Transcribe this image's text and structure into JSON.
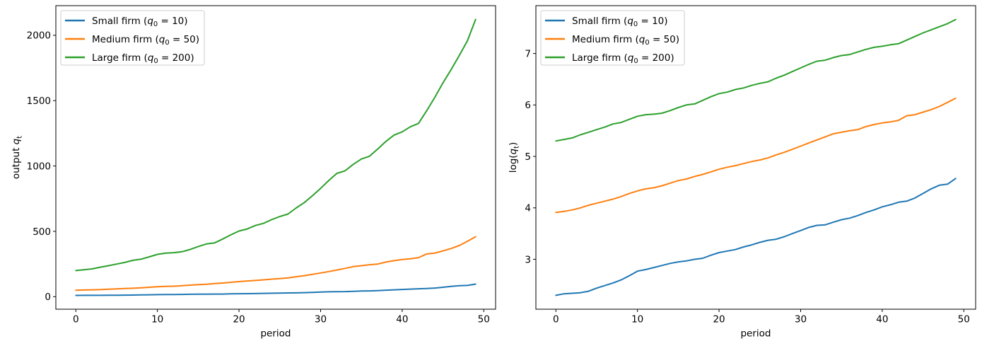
{
  "figure": {
    "background": "#ffffff",
    "text_color": "#000000",
    "axes_border_color": "#000000",
    "legend_border_color": "#cccccc",
    "legend_background": "#ffffff"
  },
  "chart_data": [
    {
      "type": "line",
      "title": "",
      "xlabel": "period",
      "ylabel": "output q_t",
      "ylabel_parts": [
        {
          "t": "output "
        },
        {
          "t": "q",
          "italic": true
        },
        {
          "t": "t",
          "sub": true
        }
      ],
      "xlim": [
        -2.45,
        51.45
      ],
      "ylim": [
        -95.6,
        2226.7
      ],
      "xticks": [
        0,
        10,
        20,
        30,
        40,
        50
      ],
      "yticks": [
        0,
        500,
        1000,
        1500,
        2000
      ],
      "grid": false,
      "legend_position": "upper left",
      "line_width": 2,
      "x": [
        0,
        1,
        2,
        3,
        4,
        5,
        6,
        7,
        8,
        9,
        10,
        11,
        12,
        13,
        14,
        15,
        16,
        17,
        18,
        19,
        20,
        21,
        22,
        23,
        24,
        25,
        26,
        27,
        28,
        29,
        30,
        31,
        32,
        33,
        34,
        35,
        36,
        37,
        38,
        39,
        40,
        41,
        42,
        43,
        44,
        45,
        46,
        47,
        48,
        49
      ],
      "series": [
        {
          "name": "Small firm",
          "q0": 10,
          "color": "#1f77b4",
          "label_parts": [
            {
              "t": "Small firm ("
            },
            {
              "t": "q",
              "italic": true
            },
            {
              "t": "0",
              "sub": true
            },
            {
              "t": " = 10)"
            }
          ],
          "values": [
            10.0,
            10.3,
            10.4,
            10.5,
            10.8,
            11.5,
            12.1,
            12.7,
            13.5,
            14.6,
            16.0,
            16.4,
            17.1,
            17.8,
            18.5,
            19.1,
            19.5,
            20.1,
            20.5,
            21.8,
            22.9,
            23.6,
            24.3,
            25.5,
            26.6,
            28.0,
            29.1,
            29.7,
            31.2,
            33.1,
            35.2,
            37.3,
            38.9,
            39.3,
            41.3,
            43.4,
            44.7,
            47.0,
            49.9,
            52.5,
            55.7,
            58.0,
            60.9,
            62.2,
            66.0,
            72.2,
            78.9,
            84.8,
            86.5,
            96.5
          ]
        },
        {
          "name": "Medium firm",
          "q0": 50,
          "color": "#ff7f0e",
          "label_parts": [
            {
              "t": "Medium firm ("
            },
            {
              "t": "q",
              "italic": true
            },
            {
              "t": "0",
              "sub": true
            },
            {
              "t": " = 50)"
            }
          ],
          "values": [
            50.0,
            50.9,
            52.5,
            54.6,
            57.4,
            59.7,
            62.2,
            64.7,
            68.0,
            72.2,
            75.9,
            79.0,
            80.6,
            83.9,
            88.2,
            92.8,
            95.6,
            100.5,
            104.6,
            109.9,
            115.6,
            120.3,
            124.0,
            129.0,
            134.3,
            138.4,
            144.0,
            152.9,
            160.8,
            170.7,
            181.3,
            192.5,
            204.4,
            217.0,
            230.4,
            237.5,
            244.7,
            249.6,
            265.1,
            275.9,
            284.3,
            290.0,
            298.9,
            327.0,
            333.6,
            350.7,
            368.7,
            391.5,
            424.1,
            459.4
          ]
        },
        {
          "name": "Large firm",
          "q0": 200,
          "color": "#2ca02c",
          "label_parts": [
            {
              "t": "Large firm ("
            },
            {
              "t": "q",
              "italic": true
            },
            {
              "t": "0",
              "sub": true
            },
            {
              "t": " = 200)"
            }
          ],
          "values": [
            200.0,
            206.4,
            212.7,
            225.9,
            237.5,
            249.6,
            262.4,
            278.7,
            287.1,
            305.0,
            323.8,
            333.6,
            337.0,
            343.8,
            361.4,
            383.8,
            403.4,
            411.6,
            441.6,
            473.4,
            502.7,
            518.0,
            544.6,
            561.1,
            589.6,
            613.7,
            632.3,
            678.6,
            720.4,
            772.8,
            828.8,
            888.9,
            944.0,
            963.0,
            1012.3,
            1053.6,
            1074.9,
            1129.9,
            1187.9,
            1236.4,
            1261.4,
            1299.7,
            1325.9,
            1422.3,
            1525.0,
            1636.5,
            1737.5,
            1844.9,
            1958.8,
            2121.2
          ]
        }
      ]
    },
    {
      "type": "line",
      "title": "",
      "xlabel": "period",
      "ylabel": "log(q_t)",
      "ylabel_parts": [
        {
          "t": "log("
        },
        {
          "t": "q",
          "italic": true
        },
        {
          "t": "t",
          "sub": true
        },
        {
          "t": ")"
        }
      ],
      "xlim": [
        -2.45,
        51.45
      ],
      "ylim": [
        2.03,
        7.93
      ],
      "xticks": [
        0,
        10,
        20,
        30,
        40,
        50
      ],
      "yticks": [
        3,
        4,
        5,
        6,
        7
      ],
      "grid": false,
      "legend_position": "upper left",
      "line_width": 2,
      "x": [
        0,
        1,
        2,
        3,
        4,
        5,
        6,
        7,
        8,
        9,
        10,
        11,
        12,
        13,
        14,
        15,
        16,
        17,
        18,
        19,
        20,
        21,
        22,
        23,
        24,
        25,
        26,
        27,
        28,
        29,
        30,
        31,
        32,
        33,
        34,
        35,
        36,
        37,
        38,
        39,
        40,
        41,
        42,
        43,
        44,
        45,
        46,
        47,
        48,
        49
      ],
      "series": [
        {
          "name": "Small firm",
          "q0": 10,
          "color": "#1f77b4",
          "label_parts": [
            {
              "t": "Small firm ("
            },
            {
              "t": "q",
              "italic": true
            },
            {
              "t": "0",
              "sub": true
            },
            {
              "t": " = 10)"
            }
          ],
          "values": [
            2.3,
            2.33,
            2.34,
            2.35,
            2.38,
            2.44,
            2.49,
            2.54,
            2.6,
            2.68,
            2.77,
            2.8,
            2.84,
            2.88,
            2.92,
            2.95,
            2.97,
            3.0,
            3.02,
            3.08,
            3.13,
            3.16,
            3.19,
            3.24,
            3.28,
            3.33,
            3.37,
            3.39,
            3.44,
            3.5,
            3.56,
            3.62,
            3.66,
            3.67,
            3.72,
            3.77,
            3.8,
            3.85,
            3.91,
            3.96,
            4.02,
            4.06,
            4.11,
            4.13,
            4.19,
            4.28,
            4.37,
            4.44,
            4.46,
            4.57
          ]
        },
        {
          "name": "Medium firm",
          "q0": 50,
          "color": "#ff7f0e",
          "label_parts": [
            {
              "t": "Medium firm ("
            },
            {
              "t": "q",
              "italic": true
            },
            {
              "t": "0",
              "sub": true
            },
            {
              "t": " = 50)"
            }
          ],
          "values": [
            3.91,
            3.93,
            3.96,
            4.0,
            4.05,
            4.09,
            4.13,
            4.17,
            4.22,
            4.28,
            4.33,
            4.37,
            4.39,
            4.43,
            4.48,
            4.53,
            4.56,
            4.61,
            4.65,
            4.7,
            4.75,
            4.79,
            4.82,
            4.86,
            4.9,
            4.93,
            4.97,
            5.03,
            5.08,
            5.14,
            5.2,
            5.26,
            5.32,
            5.38,
            5.44,
            5.47,
            5.5,
            5.52,
            5.58,
            5.62,
            5.65,
            5.67,
            5.7,
            5.79,
            5.81,
            5.86,
            5.91,
            5.97,
            6.05,
            6.13
          ]
        },
        {
          "name": "Large firm",
          "q0": 200,
          "color": "#2ca02c",
          "label_parts": [
            {
              "t": "Large firm ("
            },
            {
              "t": "q",
              "italic": true
            },
            {
              "t": "0",
              "sub": true
            },
            {
              "t": " = 200)"
            }
          ],
          "values": [
            5.3,
            5.33,
            5.36,
            5.42,
            5.47,
            5.52,
            5.57,
            5.63,
            5.66,
            5.72,
            5.78,
            5.81,
            5.82,
            5.84,
            5.89,
            5.95,
            6.0,
            6.02,
            6.09,
            6.16,
            6.22,
            6.25,
            6.3,
            6.33,
            6.38,
            6.42,
            6.45,
            6.52,
            6.58,
            6.65,
            6.72,
            6.79,
            6.85,
            6.87,
            6.92,
            6.96,
            6.98,
            7.03,
            7.08,
            7.12,
            7.14,
            7.17,
            7.19,
            7.26,
            7.33,
            7.4,
            7.46,
            7.52,
            7.58,
            7.66
          ]
        }
      ]
    }
  ]
}
